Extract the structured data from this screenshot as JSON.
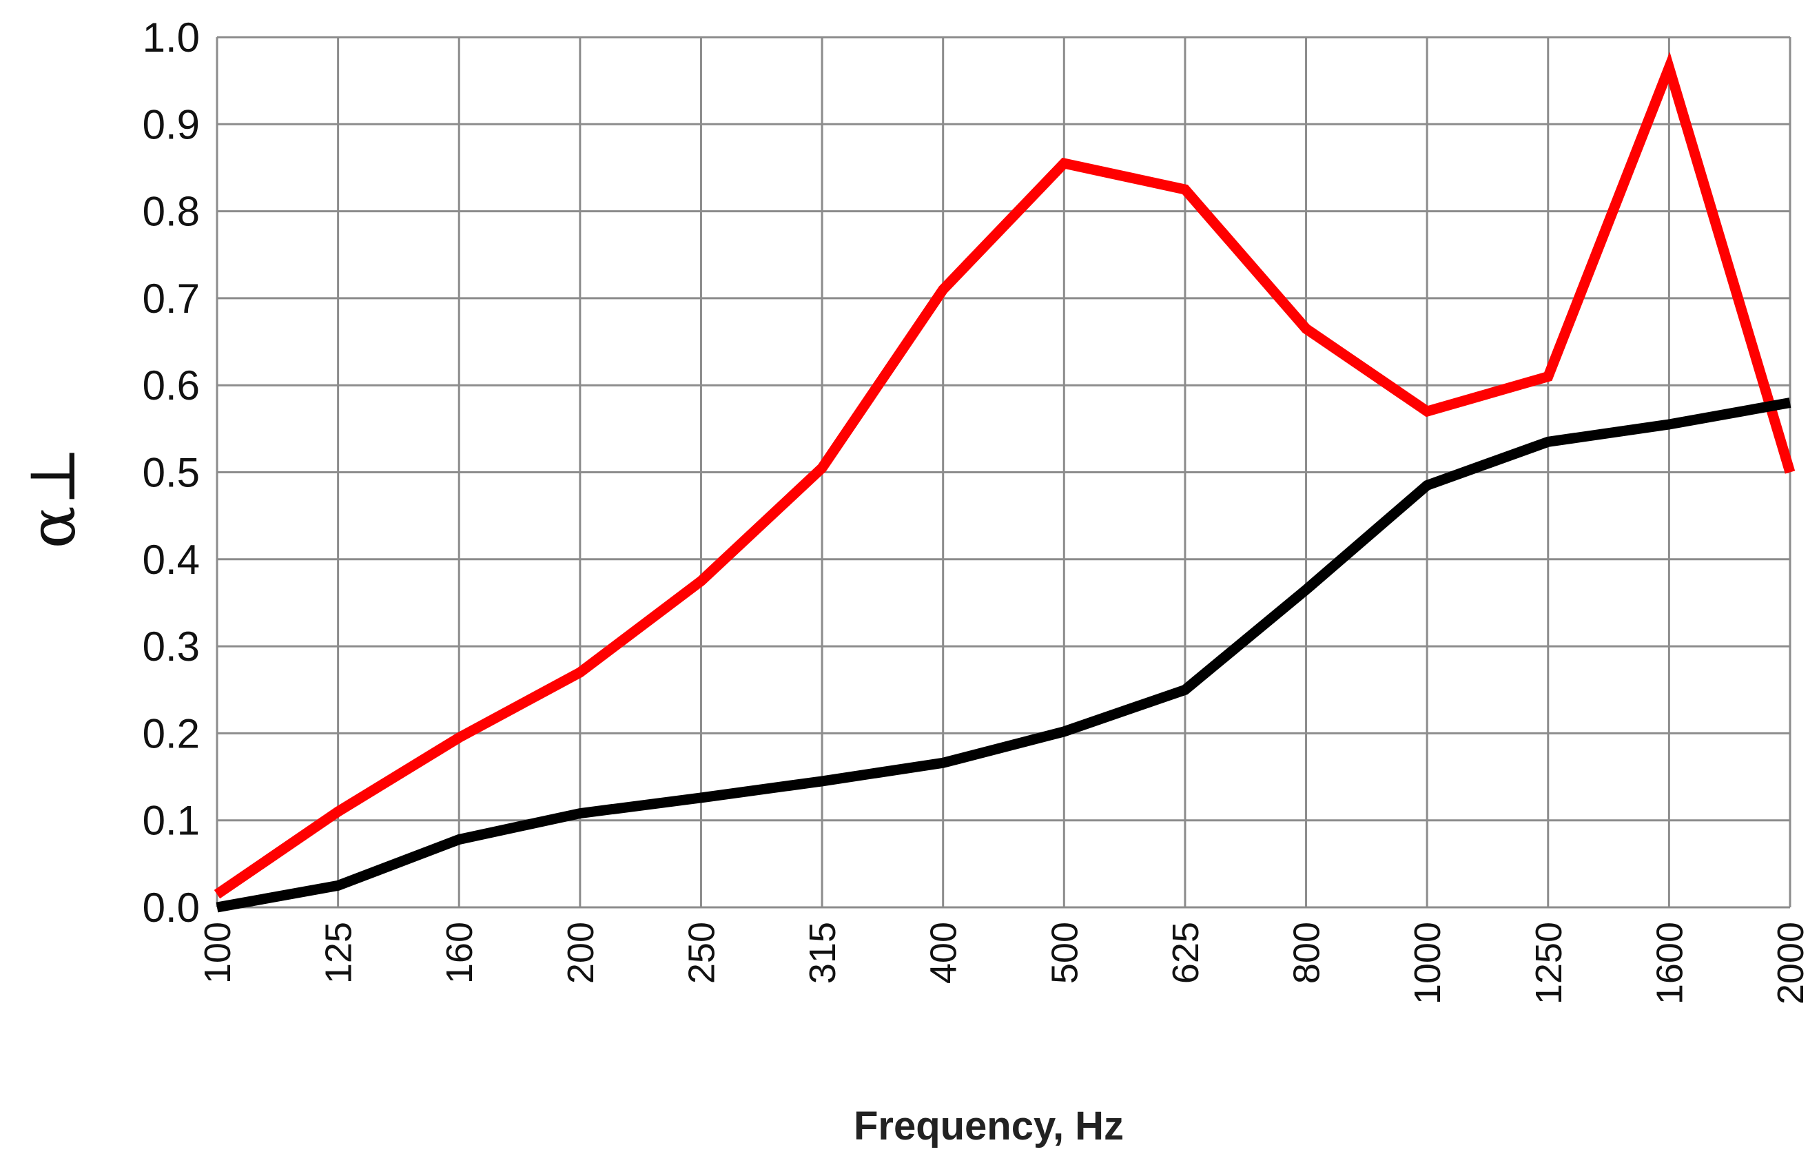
{
  "chart_data": {
    "type": "line",
    "title": "",
    "xlabel": "Frequency, Hz",
    "ylabel": "α⊥",
    "categories": [
      "100",
      "125",
      "160",
      "200",
      "250",
      "315",
      "400",
      "500",
      "625",
      "800",
      "1000",
      "1250",
      "1600",
      "2000"
    ],
    "ylim": [
      0,
      1
    ],
    "yticks": [
      "0.0",
      "0.1",
      "0.2",
      "0.3",
      "0.4",
      "0.5",
      "0.6",
      "0.7",
      "0.8",
      "0.9",
      "1.0"
    ],
    "grid": true,
    "legend": "none",
    "series": [
      {
        "color": "#ff0000",
        "values": [
          0.015,
          0.11,
          0.195,
          0.27,
          0.375,
          0.505,
          0.71,
          0.855,
          0.825,
          0.665,
          0.57,
          0.61,
          0.965,
          0.5
        ]
      },
      {
        "color": "#000000",
        "values": [
          0.0,
          0.025,
          0.078,
          0.108,
          0.126,
          0.145,
          0.166,
          0.202,
          0.25,
          0.365,
          0.485,
          0.535,
          0.555,
          0.58
        ]
      }
    ]
  }
}
